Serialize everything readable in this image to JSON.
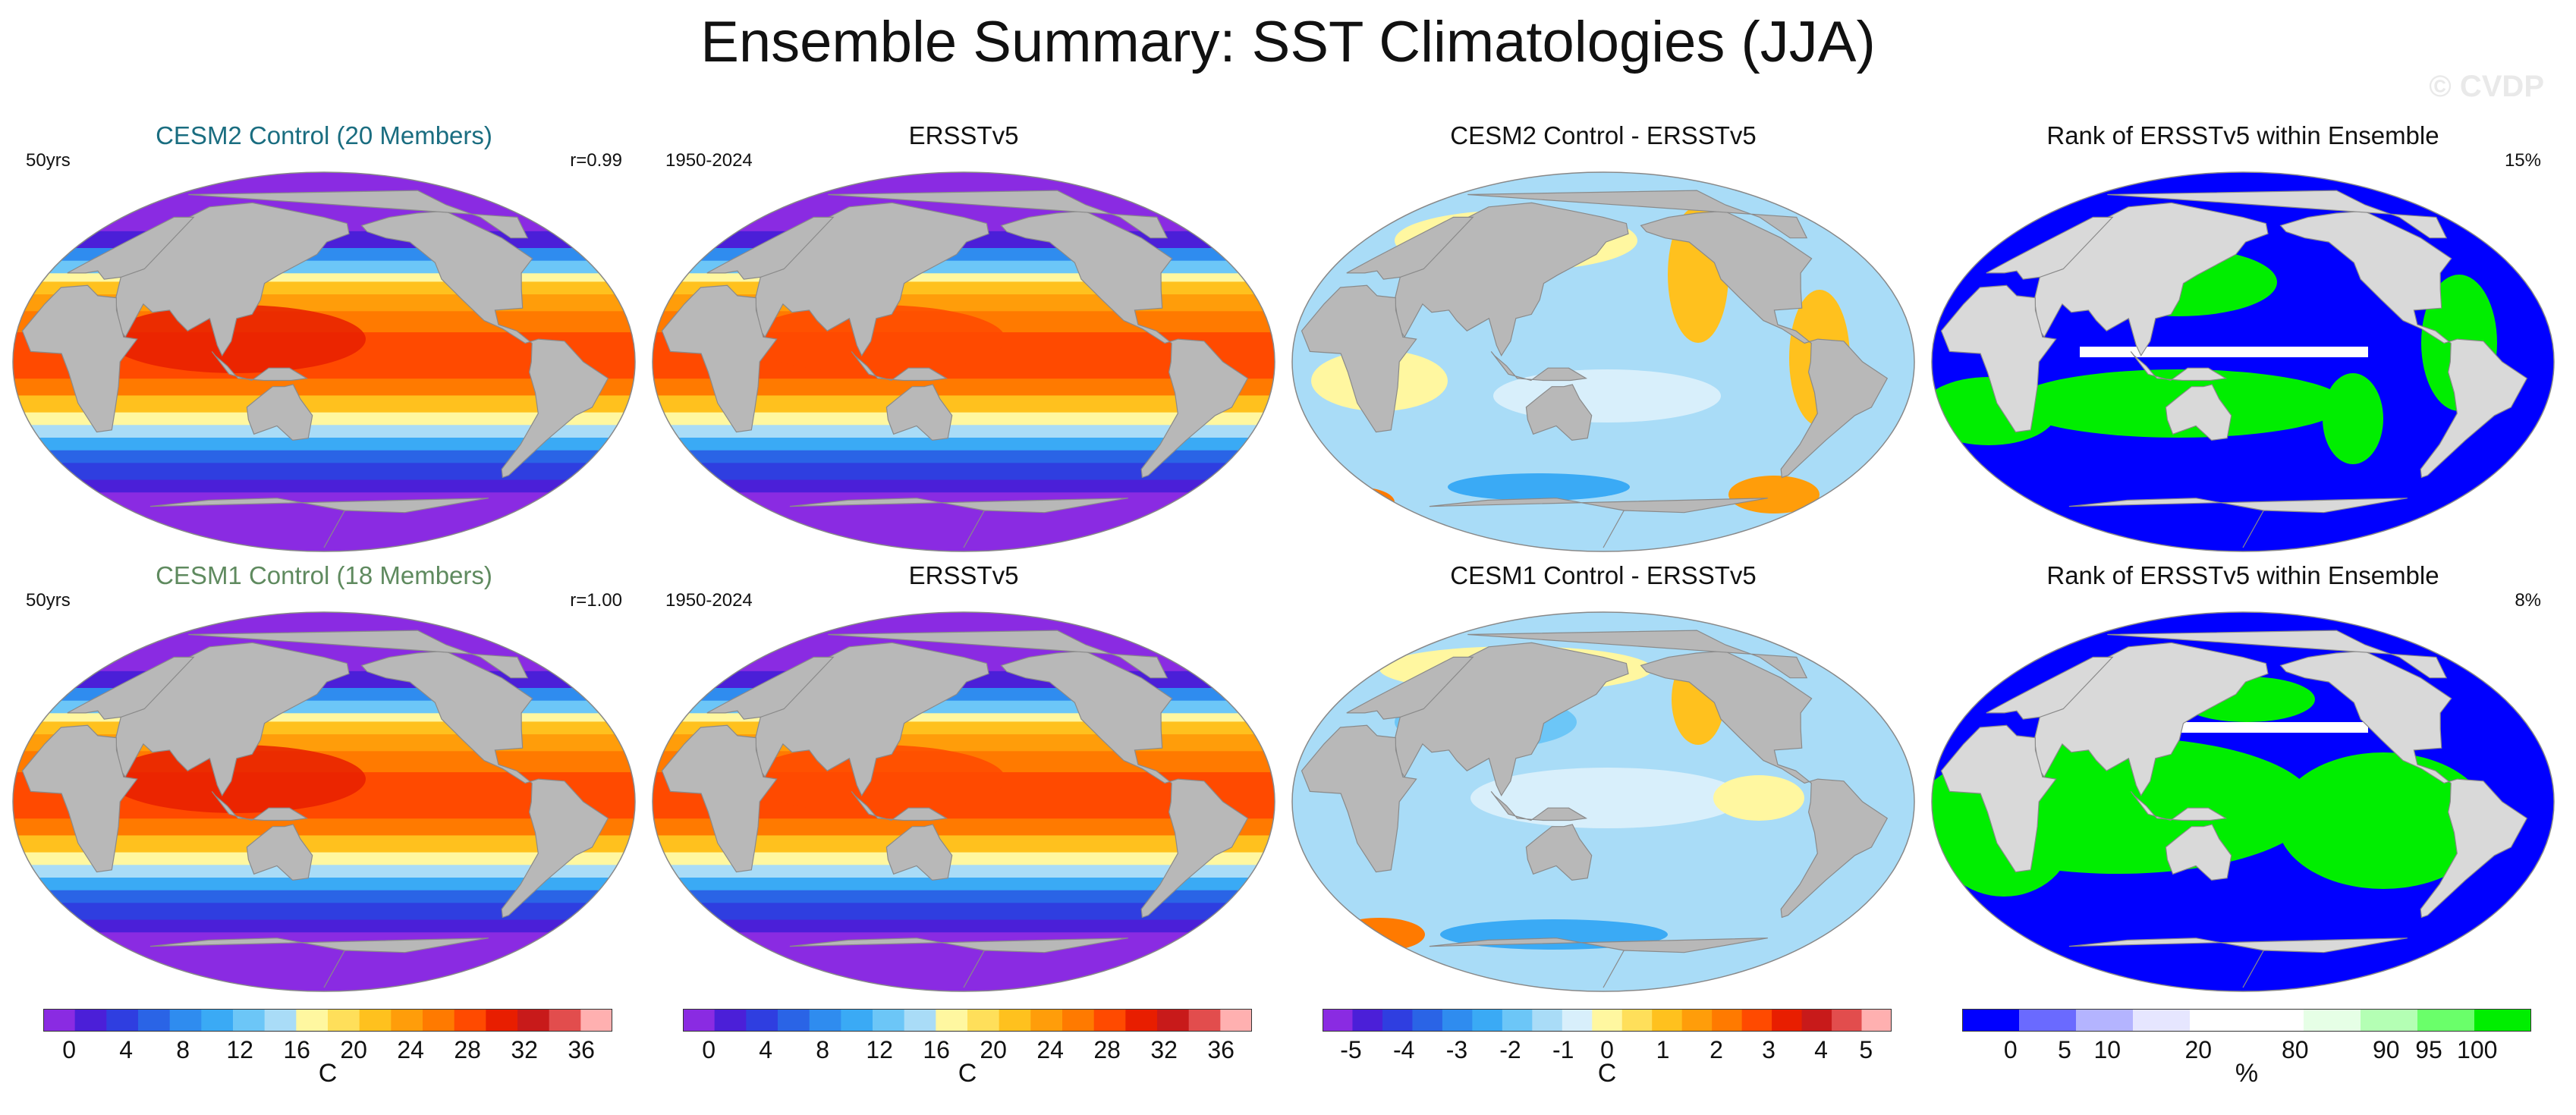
{
  "title": "Ensemble Summary: SST Climatologies (JJA)",
  "watermark": "© CVDP",
  "rows": [
    {
      "panels": [
        {
          "title": "CESM2 Control (20 Members)",
          "title_color": "#1a6d80",
          "left": "50yrs",
          "right": "r=0.99",
          "field": "sst"
        },
        {
          "title": "ERSSTv5",
          "title_color": "#111111",
          "left": "1950-2024",
          "right": "",
          "field": "sst_obs"
        },
        {
          "title": "CESM2 Control - ERSSTv5",
          "title_color": "#111111",
          "left": "",
          "right": "",
          "field": "diff_a"
        },
        {
          "title": "Rank of ERSSTv5 within Ensemble",
          "title_color": "#111111",
          "left": "",
          "right": "15%",
          "field": "rank_a"
        }
      ]
    },
    {
      "panels": [
        {
          "title": "CESM1 Control (18 Members)",
          "title_color": "#5f8a5f",
          "left": "50yrs",
          "right": "r=1.00",
          "field": "sst"
        },
        {
          "title": "ERSSTv5",
          "title_color": "#111111",
          "left": "1950-2024",
          "right": "",
          "field": "sst_obs"
        },
        {
          "title": "CESM1 Control - ERSSTv5",
          "title_color": "#111111",
          "left": "",
          "right": "",
          "field": "diff_b"
        },
        {
          "title": "Rank of ERSSTv5 within Ensemble",
          "title_color": "#111111",
          "left": "",
          "right": "8%",
          "field": "rank_b"
        }
      ]
    }
  ],
  "colorbars": [
    {
      "colors": [
        "#8a2be2",
        "#4b1fd8",
        "#2f3ee0",
        "#2a64e6",
        "#2f8cef",
        "#3aaaf5",
        "#6cc6f7",
        "#a9dcf7",
        "#fff7a0",
        "#ffdf5a",
        "#ffc11e",
        "#ff9d0a",
        "#ff7a00",
        "#ff4a00",
        "#e81e00",
        "#c81a1a",
        "#e24d4d",
        "#ffb0b0"
      ],
      "tick_labels": [
        "0",
        "4",
        "8",
        "12",
        "16",
        "20",
        "24",
        "28",
        "32",
        "36"
      ],
      "tick_positions": [
        0.0455,
        0.1455,
        0.2455,
        0.3455,
        0.4455,
        0.5455,
        0.6455,
        0.7455,
        0.8455,
        0.9455
      ],
      "unit": "C"
    },
    {
      "colors": [
        "#8a2be2",
        "#4b1fd8",
        "#2f3ee0",
        "#2a64e6",
        "#2f8cef",
        "#3aaaf5",
        "#6cc6f7",
        "#a9dcf7",
        "#fff7a0",
        "#ffdf5a",
        "#ffc11e",
        "#ff9d0a",
        "#ff7a00",
        "#ff4a00",
        "#e81e00",
        "#c81a1a",
        "#e24d4d",
        "#ffb0b0"
      ],
      "tick_labels": [
        "0",
        "4",
        "8",
        "12",
        "16",
        "20",
        "24",
        "28",
        "32",
        "36"
      ],
      "tick_positions": [
        0.0455,
        0.1455,
        0.2455,
        0.3455,
        0.4455,
        0.5455,
        0.6455,
        0.7455,
        0.8455,
        0.9455
      ],
      "unit": "C"
    },
    {
      "colors": [
        "#8a2be2",
        "#4b1fd8",
        "#2f3ee0",
        "#2a64e6",
        "#2f8cef",
        "#3aaaf5",
        "#6cc6f7",
        "#a9dcf7",
        "#d8effb",
        "#fff7a0",
        "#ffdf5a",
        "#ffc11e",
        "#ff9d0a",
        "#ff7a00",
        "#ff4a00",
        "#e81e00",
        "#c81a1a",
        "#e24d4d",
        "#ffb0b0"
      ],
      "tick_labels": [
        "-5",
        "-4",
        "-3",
        "-2",
        "-1",
        "0",
        "1",
        "2",
        "3",
        "4",
        "5"
      ],
      "tick_positions": [
        0.05,
        0.143,
        0.236,
        0.33,
        0.423,
        0.5,
        0.598,
        0.692,
        0.784,
        0.876,
        0.955
      ],
      "unit": "C"
    },
    {
      "colors": [
        "#0000ff",
        "#6a6aff",
        "#b4b4ff",
        "#e6e6ff",
        "#ffffff",
        "#ffffff",
        "#e6ffe6",
        "#b4ffb4",
        "#6aff6a",
        "#00ee00"
      ],
      "tick_labels": [
        "0",
        "5",
        "10",
        "20",
        "80",
        "90",
        "95",
        "100"
      ],
      "tick_positions": [
        0.085,
        0.18,
        0.255,
        0.415,
        0.585,
        0.745,
        0.82,
        0.905
      ],
      "unit": "%"
    }
  ]
}
